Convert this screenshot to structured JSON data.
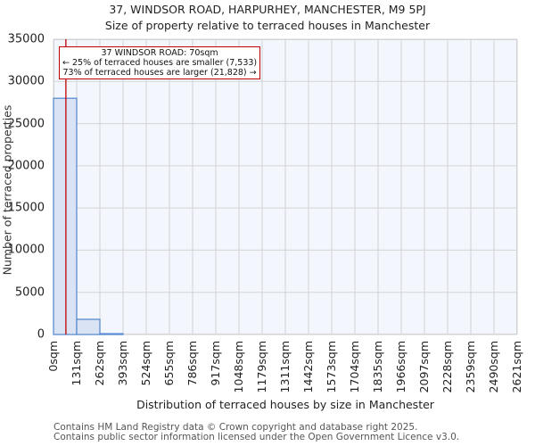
{
  "title_line1": "37, WINDSOR ROAD, HARPURHEY, MANCHESTER, M9 5PJ",
  "title_line2": "Size of property relative to terraced houses in Manchester",
  "annotation": {
    "line1": "37 WINDSOR ROAD: 70sqm",
    "line2": "← 25% of terraced houses are smaller (7,533)",
    "line3": "73% of terraced houses are larger (21,828) →",
    "marker_value": 70,
    "marker_color": "#c00000"
  },
  "footer": {
    "line1": "Contains HM Land Registry data © Crown copyright and database right 2025.",
    "line2": "Contains public sector information licensed under the Open Government Licence v3.0."
  },
  "colors": {
    "bar_fill": "#dae3f3",
    "bar_edge": "#5b8bd0",
    "plot_bg": "#f3f6fd",
    "grid": "#d3d3d3",
    "marker": "#c00000"
  },
  "chart_data": {
    "type": "bar",
    "title": "37, WINDSOR ROAD, HARPURHEY, MANCHESTER, M9 5PJ — Size of property relative to terraced houses in Manchester",
    "xlabel": "Distribution of terraced houses by size in Manchester",
    "ylabel": "Number of terraced properties",
    "categories": [
      "0sqm",
      "131sqm",
      "262sqm",
      "393sqm",
      "524sqm",
      "655sqm",
      "786sqm",
      "917sqm",
      "1048sqm",
      "1179sqm",
      "1311sqm",
      "1442sqm",
      "1573sqm",
      "1704sqm",
      "1835sqm",
      "1966sqm",
      "2097sqm",
      "2228sqm",
      "2359sqm",
      "2490sqm",
      "2621sqm"
    ],
    "values": [
      28000,
      1800,
      100,
      0,
      0,
      0,
      0,
      0,
      0,
      0,
      0,
      0,
      0,
      0,
      0,
      0,
      0,
      0,
      0,
      0
    ],
    "yticks": [
      0,
      5000,
      10000,
      15000,
      20000,
      25000,
      30000,
      35000
    ],
    "ylim": [
      0,
      35000
    ],
    "grid": true,
    "annotations": [
      "37 WINDSOR ROAD: 70sqm",
      "← 25% of terraced houses are smaller (7,533)",
      "73% of terraced houses are larger (21,828) →"
    ],
    "marker_x": 70
  }
}
